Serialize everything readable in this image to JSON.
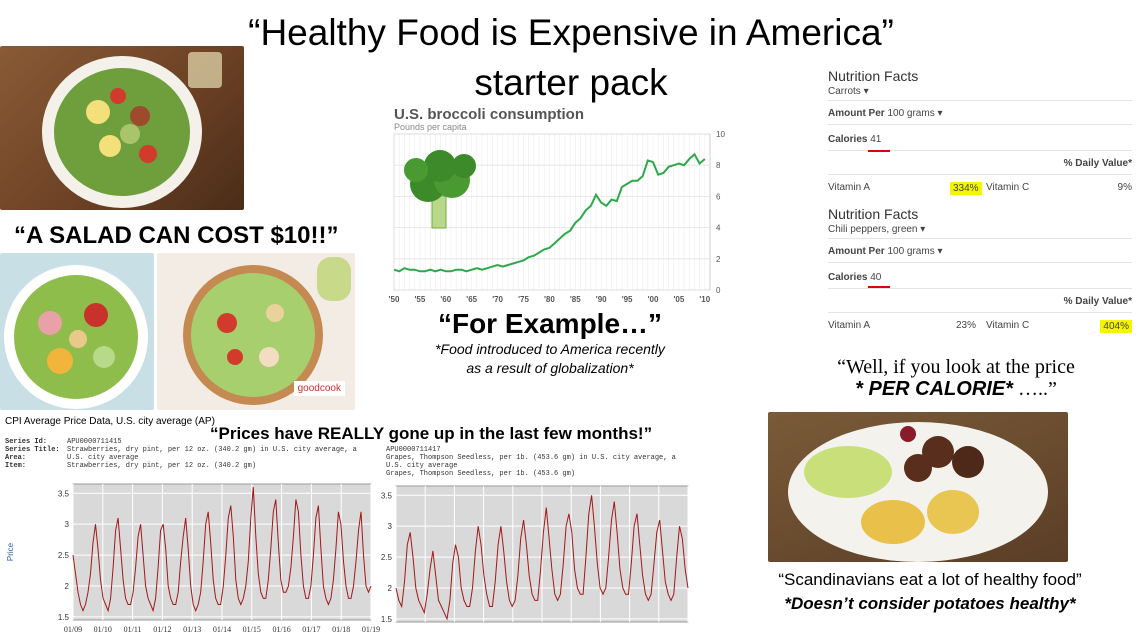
{
  "title": {
    "line1": "“Healthy Food is Expensive in America”",
    "line2": "starter pack"
  },
  "salad": {
    "caption": "“A SALAD CAN COST $10!!”",
    "brand": "goodcook"
  },
  "broccoli": {
    "title": "U.S. broccoli consumption",
    "subtitle": "Pounds per capita",
    "for_example": "“For Example…”",
    "note_line1": "*Food introduced to America recently",
    "note_line2": "as a result of globalization*"
  },
  "nutrition": [
    {
      "heading": "Nutrition Facts",
      "food": "Carrots",
      "amount_label": "Amount Per",
      "amount": "100 grams",
      "calories_label": "Calories",
      "calories": "41",
      "daily_value": "% Daily Value*",
      "vit_a_label": "Vitamin A",
      "vit_a": "334%",
      "vit_c_label": "Vitamin C",
      "vit_c": "9%"
    },
    {
      "heading": "Nutrition Facts",
      "food": "Chili peppers, green",
      "amount_label": "Amount Per",
      "amount": "100 grams",
      "calories_label": "Calories",
      "calories": "40",
      "daily_value": "% Daily Value*",
      "vit_a_label": "Vitamin A",
      "vit_a": "23%",
      "vit_c_label": "Vitamin C",
      "vit_c": "404%"
    }
  ],
  "calorie_quote": {
    "line1": "“Well, if you look at the price",
    "line2_bold": "* PER CALORIE*",
    "line2_tail": " …..”"
  },
  "scandinavia": {
    "line1": "“Scandinavians eat a lot of healthy food”",
    "line2": "*Doesn’t consider potatoes healthy*"
  },
  "cpi": {
    "title": "CPI Average Price Data, U.S. city average (AP)",
    "quote": "“Prices have REALLY gone up in the last few months!”",
    "left_meta": {
      "series_id_label": "Series Id:",
      "series_id": "APU0000711415",
      "series_title_label": "Series Title:",
      "series_title": "Strawberries, dry pint, per 12 oz. (340.2 gm) in U.S. city average, a",
      "area_label": "Area:",
      "area": "U.S. city average",
      "item_label": "Item:",
      "item": "Strawberries, dry pint, per 12 oz. (340.2 gm)"
    },
    "right_meta": {
      "series_id": "APU0000711417",
      "series_title": "Grapes, Thompson Seedless, per 1b. (453.6 gm) in U.S. city average, a",
      "area": "U.S. city average",
      "item": "Grapes, Thompson Seedless, per 1b. (453.6 gm)"
    },
    "ylabel": "Price"
  },
  "chart_data": [
    {
      "type": "line",
      "title": "U.S. broccoli consumption",
      "subtitle": "Pounds per capita",
      "xlabel": "",
      "ylabel": "",
      "x_tick_labels": [
        "'50",
        "'55",
        "'60",
        "'65",
        "'70",
        "'75",
        "'80",
        "'85",
        "'90",
        "'95",
        "'00",
        "'05",
        "'10"
      ],
      "y_ticks": [
        0,
        2,
        4,
        6,
        8,
        10
      ],
      "ylim": [
        0,
        10
      ],
      "xlim": [
        1950,
        2011
      ],
      "grid": true,
      "x": [
        1950,
        1951,
        1952,
        1953,
        1954,
        1955,
        1956,
        1957,
        1958,
        1959,
        1960,
        1961,
        1962,
        1963,
        1964,
        1965,
        1966,
        1967,
        1968,
        1969,
        1970,
        1971,
        1972,
        1973,
        1974,
        1975,
        1976,
        1977,
        1978,
        1979,
        1980,
        1981,
        1982,
        1983,
        1984,
        1985,
        1986,
        1987,
        1988,
        1989,
        1990,
        1991,
        1992,
        1993,
        1994,
        1995,
        1996,
        1997,
        1998,
        1999,
        2000,
        2001,
        2002,
        2003,
        2004,
        2005,
        2006,
        2007,
        2008,
        2009,
        2010
      ],
      "values": [
        1.3,
        1.2,
        1.4,
        1.3,
        1.3,
        1.2,
        1.2,
        1.3,
        1.2,
        1.3,
        1.2,
        1.2,
        1.3,
        1.3,
        1.2,
        1.3,
        1.4,
        1.3,
        1.4,
        1.5,
        1.6,
        1.5,
        1.6,
        1.7,
        1.8,
        1.9,
        2.1,
        2.2,
        2.4,
        2.6,
        2.7,
        3.0,
        3.3,
        3.6,
        3.8,
        4.3,
        4.6,
        5.1,
        5.4,
        6.1,
        5.6,
        5.4,
        5.8,
        5.7,
        6.6,
        6.8,
        7.0,
        7.0,
        7.3,
        8.3,
        8.2,
        7.4,
        7.5,
        7.9,
        8.0,
        8.1,
        8.0,
        8.4,
        8.7,
        8.1,
        8.4
      ]
    },
    {
      "type": "line",
      "title": "",
      "xlabel": "",
      "ylabel": "Price",
      "x_tick_labels": [
        "01/09",
        "01/10",
        "01/11",
        "01/12",
        "01/13",
        "01/14",
        "01/15",
        "01/16",
        "01/17",
        "01/18",
        "01/19"
      ],
      "y_ticks": [
        1.5,
        2,
        2.5,
        3,
        3.5
      ],
      "ylim": [
        1.45,
        3.65
      ],
      "grid": true,
      "series": [
        {
          "values": [
            2.5,
            2.2,
            1.9,
            1.7,
            1.6,
            1.7,
            1.9,
            2.2,
            2.7,
            3.0,
            2.6,
            2.1,
            1.8,
            1.7,
            1.6,
            1.8,
            2.3,
            2.9,
            3.1,
            2.6,
            2.1,
            1.8,
            1.7,
            1.7,
            1.9,
            2.3,
            2.8,
            3.0,
            2.5,
            2.0,
            1.8,
            1.7,
            1.6,
            1.8,
            2.3,
            2.9,
            3.0,
            2.6,
            2.0,
            1.8,
            1.7,
            1.7,
            1.9,
            2.4,
            2.8,
            3.1,
            2.6,
            2.0,
            1.7,
            1.6,
            1.7,
            1.9,
            2.4,
            3.0,
            3.2,
            2.7,
            2.1,
            1.8,
            1.7,
            1.7,
            2.0,
            2.5,
            3.1,
            3.3,
            2.8,
            2.1,
            1.8,
            1.7,
            1.8,
            2.0,
            2.4,
            3.1,
            3.6,
            2.8,
            2.2,
            1.9,
            1.8,
            1.8,
            2.1,
            2.6,
            3.2,
            3.4,
            2.7,
            2.1,
            1.9,
            1.9,
            2.0,
            2.3,
            2.8,
            3.4,
            3.2,
            2.5,
            2.0,
            1.8,
            1.8,
            2.0,
            2.5,
            3.1,
            3.3,
            2.6,
            2.0,
            1.8,
            1.7,
            1.8,
            2.1,
            2.6,
            3.2,
            3.0,
            2.4,
            2.0,
            1.8,
            1.8,
            2.0,
            2.4,
            2.9,
            3.2,
            2.5,
            2.0,
            1.9,
            2.0
          ]
        }
      ]
    },
    {
      "type": "line",
      "title": "",
      "xlabel": "",
      "ylabel": "",
      "y_ticks": [
        1.5,
        2,
        2.5,
        3,
        3.5
      ],
      "ylim": [
        1.45,
        3.65
      ],
      "grid": true,
      "series": [
        {
          "values": [
            2.0,
            1.8,
            1.7,
            2.1,
            2.7,
            2.9,
            2.5,
            2.0,
            1.8,
            1.7,
            1.6,
            1.9,
            2.3,
            2.6,
            2.2,
            1.8,
            1.7,
            1.6,
            1.5,
            1.8,
            2.4,
            2.7,
            2.5,
            2.0,
            1.8,
            1.7,
            1.7,
            2.0,
            2.6,
            3.0,
            2.7,
            2.2,
            1.9,
            1.7,
            1.7,
            2.1,
            2.7,
            3.0,
            2.6,
            2.1,
            1.8,
            1.7,
            1.8,
            2.2,
            2.8,
            3.1,
            2.7,
            2.2,
            1.9,
            1.8,
            1.8,
            2.3,
            2.9,
            3.3,
            2.8,
            2.3,
            1.9,
            1.8,
            1.9,
            2.4,
            3.0,
            3.2,
            2.9,
            2.3,
            2.0,
            1.9,
            1.9,
            2.5,
            3.2,
            3.5,
            3.0,
            2.4,
            2.0,
            1.9,
            2.0,
            2.5,
            3.1,
            3.4,
            2.9,
            2.3,
            2.0,
            1.9,
            1.9,
            2.4,
            3.0,
            3.2,
            2.7,
            2.2,
            1.9,
            1.8,
            1.9,
            2.4,
            2.9,
            3.1,
            2.6,
            2.1,
            1.9,
            1.8,
            1.9,
            2.5,
            3.0,
            2.8,
            2.3,
            2.0
          ]
        }
      ]
    }
  ]
}
